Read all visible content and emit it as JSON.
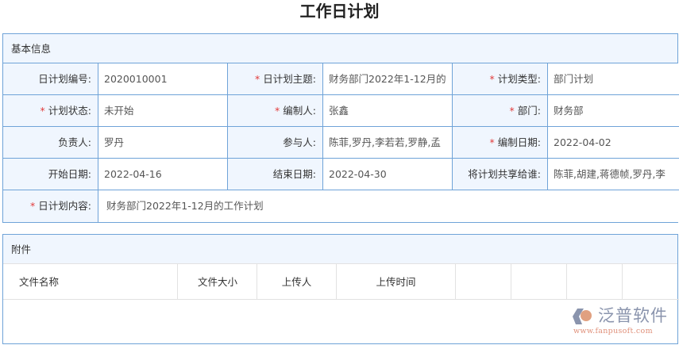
{
  "page_title": "工作日计划",
  "basic_info": {
    "section_title": "基本信息",
    "rows": [
      [
        {
          "label": "日计划编号:",
          "required": false,
          "value": "2020010001"
        },
        {
          "label": "日计划主题:",
          "required": true,
          "value": "财务部门2022年1-12月的"
        },
        {
          "label": "计划类型:",
          "required": true,
          "value": "部门计划"
        }
      ],
      [
        {
          "label": "计划状态:",
          "required": true,
          "value": "未开始"
        },
        {
          "label": "编制人:",
          "required": true,
          "value": "张鑫"
        },
        {
          "label": "部门:",
          "required": true,
          "value": "财务部"
        }
      ],
      [
        {
          "label": "负责人:",
          "required": false,
          "value": "罗丹"
        },
        {
          "label": "参与人:",
          "required": false,
          "value": "陈菲,罗丹,李若若,罗静,孟"
        },
        {
          "label": "编制日期:",
          "required": true,
          "value": "2022-04-02"
        }
      ],
      [
        {
          "label": "开始日期:",
          "required": false,
          "value": "2022-04-16"
        },
        {
          "label": "结束日期:",
          "required": false,
          "value": "2022-04-30"
        },
        {
          "label": "将计划共享给谁:",
          "required": false,
          "value": "陈菲,胡建,蒋德帧,罗丹,李"
        }
      ]
    ],
    "content": {
      "label": "日计划内容:",
      "required": true,
      "value": "财务部门2022年1-12月的工作计划"
    }
  },
  "attachments": {
    "section_title": "附件",
    "columns": [
      "文件名称",
      "文件大小",
      "上传人",
      "上传时间",
      "",
      "",
      "",
      ""
    ]
  },
  "watermark": {
    "brand": "泛普软件",
    "url": "www.fanpusoft.com"
  },
  "colors": {
    "border": "#6fa3d8",
    "label_bg": "#f0f6fe",
    "required": "#e23b3b"
  }
}
